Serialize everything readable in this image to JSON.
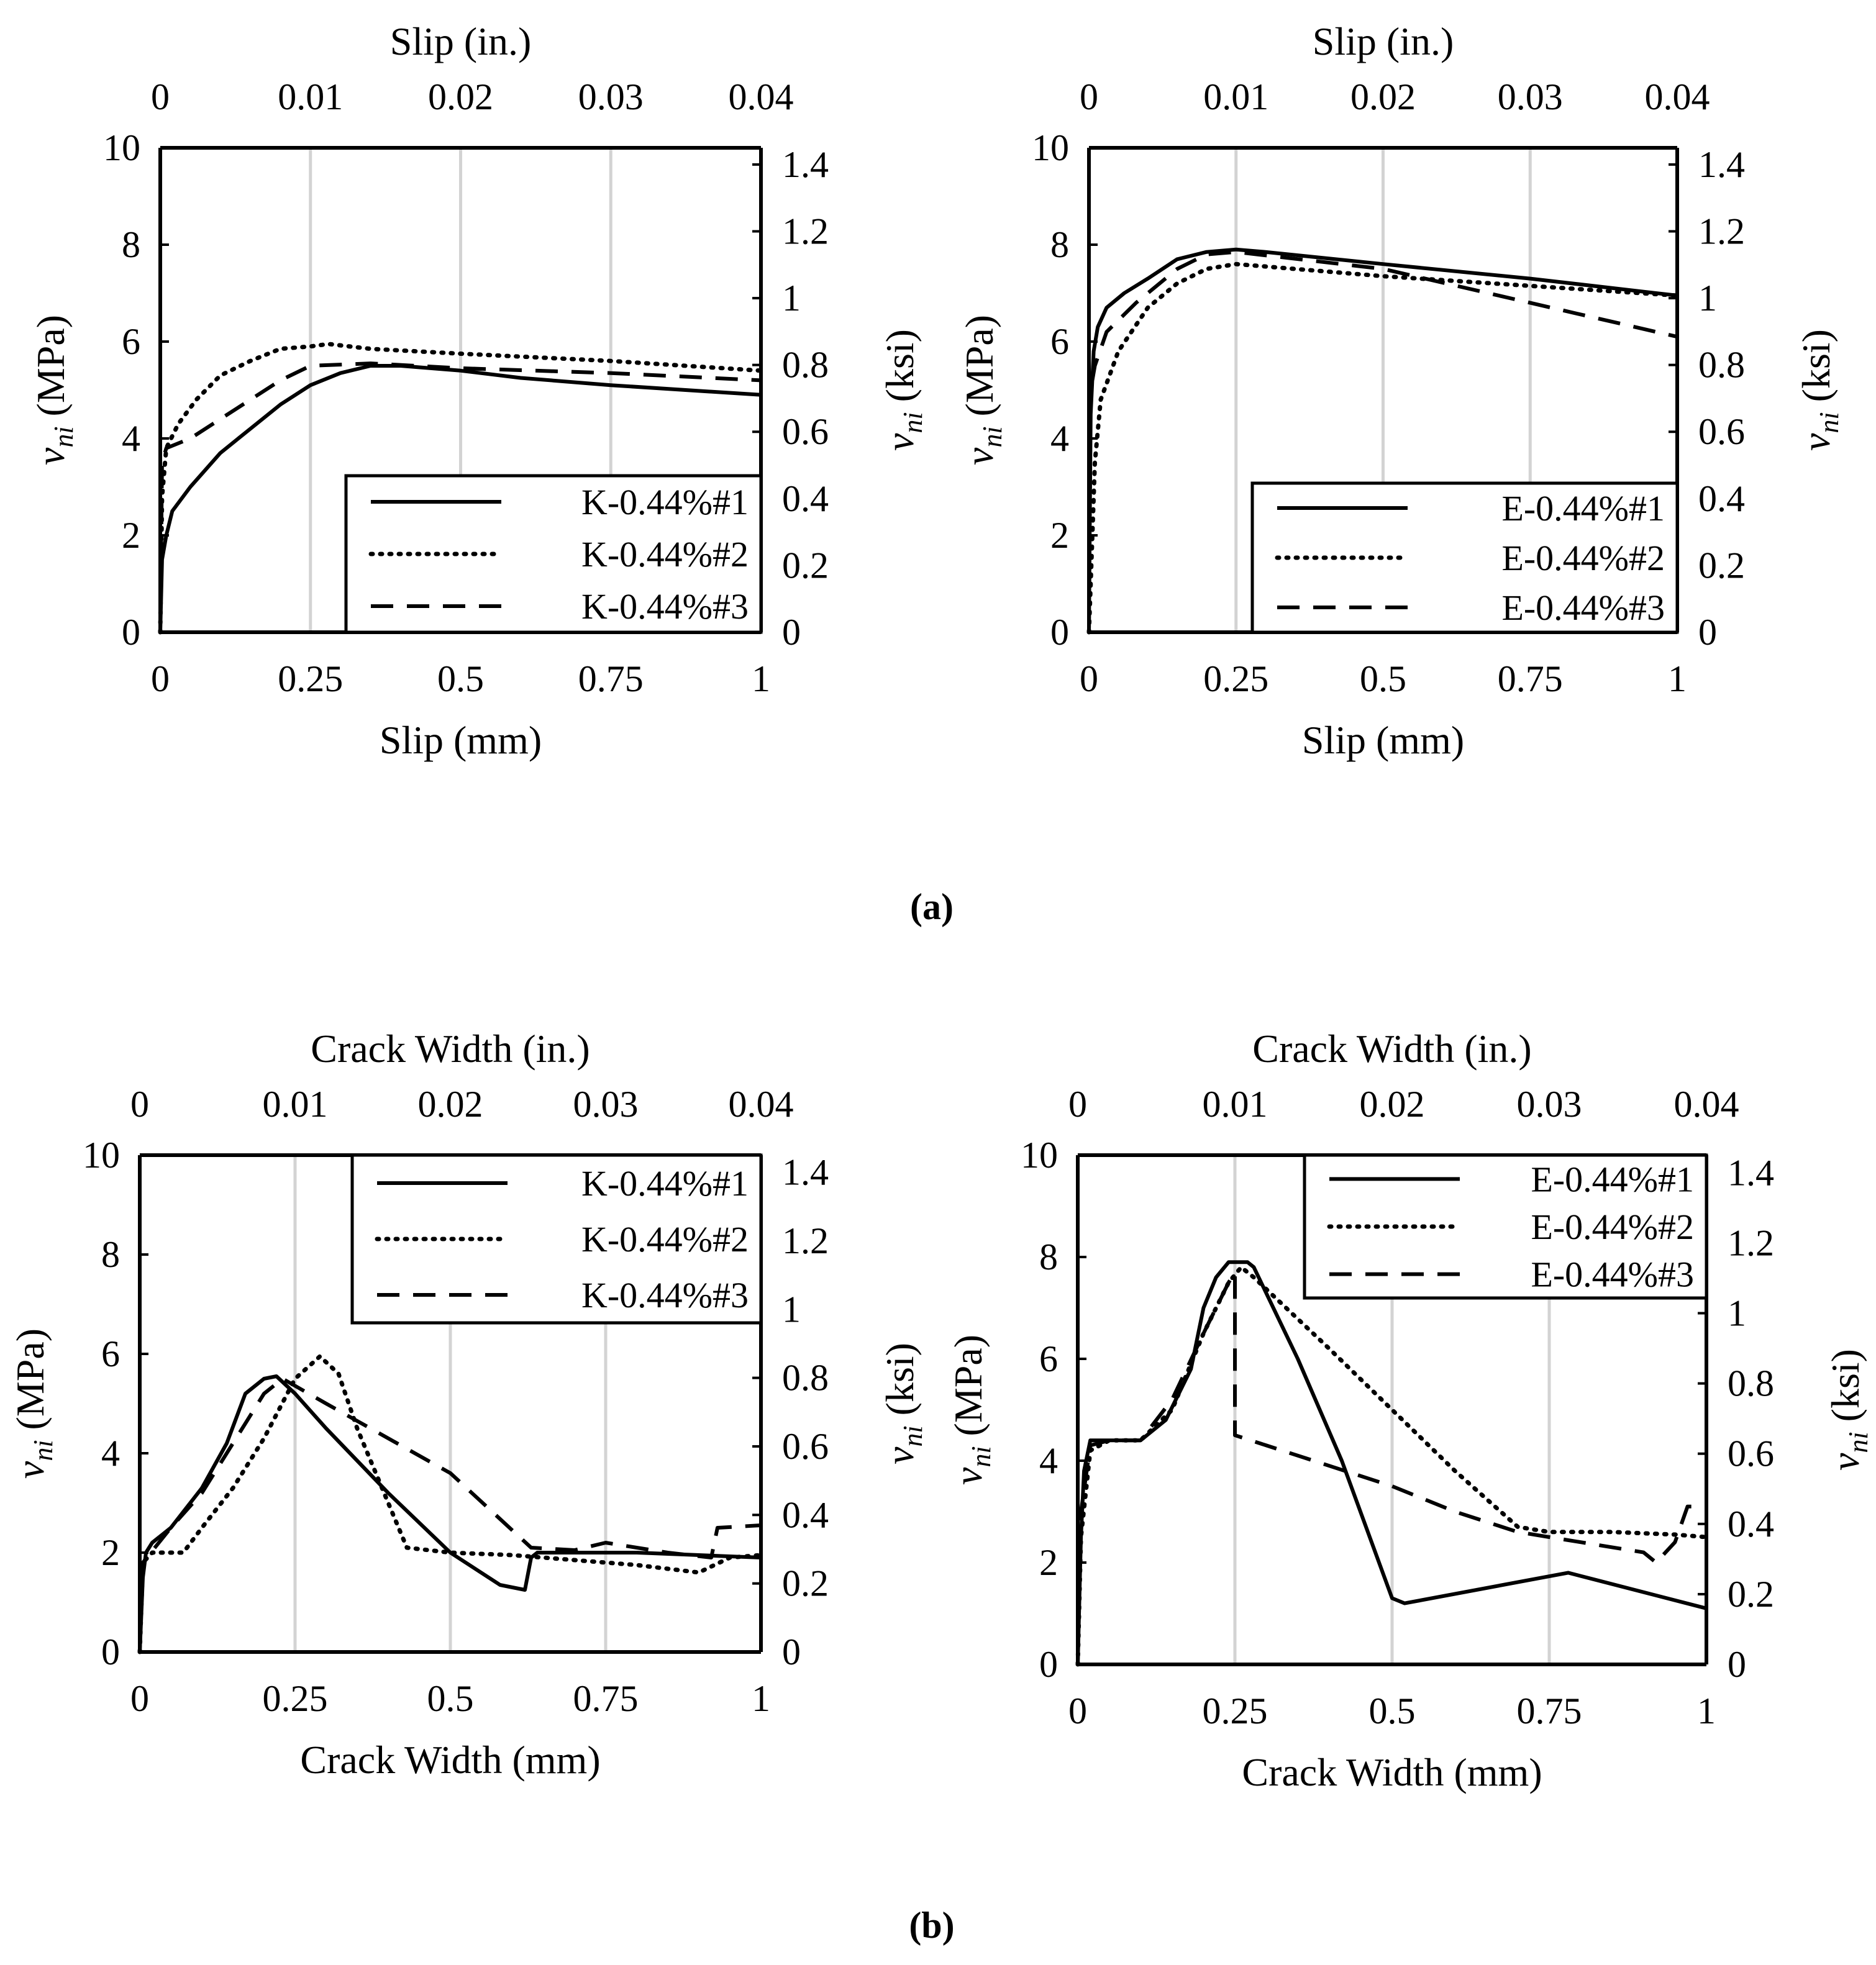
{
  "captions": {
    "a": "(a)",
    "b": "(b)"
  },
  "colors": {
    "line": "#000000",
    "grid": "#d3d3d3",
    "background": "#ffffff"
  },
  "chart_data": [
    {
      "id": "a-left",
      "type": "line",
      "xlabel": "Slip (mm)",
      "x2label": "Slip (in.)",
      "ylabel_main": "v",
      "ylabel_sub": "ni",
      "ylabel_unit": " (MPa)",
      "y2label_main": "v",
      "y2label_sub": "ni",
      "y2label_unit": " (ksi)",
      "xlim": [
        0,
        1
      ],
      "ylim": [
        0,
        10
      ],
      "x2lim": [
        0,
        0.04
      ],
      "y2lim": [
        0,
        1.45
      ],
      "xticks": [
        "0",
        "0.25",
        "0.5",
        "0.75",
        "1"
      ],
      "x2ticks": [
        "0",
        "0.01",
        "0.02",
        "0.03",
        "0.04"
      ],
      "yticks": [
        "0",
        "2",
        "4",
        "6",
        "8",
        "10"
      ],
      "y2ticks": [
        "0",
        "0.2",
        "0.4",
        "0.6",
        "0.8",
        "1",
        "1.2",
        "1.4"
      ],
      "grid": "vertical",
      "legend": "bottom-right",
      "series": [
        {
          "name": "K-0.44%#1",
          "style": "solid",
          "x": [
            0,
            0.003,
            0.01,
            0.02,
            0.05,
            0.1,
            0.15,
            0.2,
            0.25,
            0.3,
            0.35,
            0.4,
            0.5,
            0.6,
            0.75,
            1.0
          ],
          "y": [
            0,
            1.5,
            2.0,
            2.5,
            3.0,
            3.7,
            4.2,
            4.7,
            5.1,
            5.35,
            5.5,
            5.5,
            5.4,
            5.25,
            5.1,
            4.9
          ]
        },
        {
          "name": "K-0.44%#2",
          "style": "dotted",
          "x": [
            0,
            0.003,
            0.01,
            0.03,
            0.06,
            0.1,
            0.15,
            0.2,
            0.25,
            0.28,
            0.35,
            0.5,
            0.75,
            1.0
          ],
          "y": [
            0,
            2.8,
            3.8,
            4.3,
            4.8,
            5.3,
            5.6,
            5.85,
            5.9,
            5.95,
            5.85,
            5.75,
            5.6,
            5.4
          ]
        },
        {
          "name": "K-0.44%#3",
          "style": "dashed",
          "x": [
            0,
            0.003,
            0.01,
            0.05,
            0.1,
            0.15,
            0.2,
            0.25,
            0.35,
            0.5,
            0.75,
            1.0
          ],
          "y": [
            0,
            3.5,
            3.8,
            4.0,
            4.4,
            4.8,
            5.2,
            5.5,
            5.55,
            5.45,
            5.35,
            5.2
          ]
        }
      ]
    },
    {
      "id": "a-right",
      "type": "line",
      "xlabel": "Slip (mm)",
      "x2label": "Slip (in.)",
      "ylabel_main": "v",
      "ylabel_sub": "ni",
      "ylabel_unit": " (MPa)",
      "y2label_main": "v",
      "y2label_sub": "ni",
      "y2label_unit": " (ksi)",
      "xlim": [
        0,
        1
      ],
      "ylim": [
        0,
        10
      ],
      "x2lim": [
        0,
        0.04
      ],
      "y2lim": [
        0,
        1.45
      ],
      "xticks": [
        "0",
        "0.25",
        "0.5",
        "0.75",
        "1"
      ],
      "x2ticks": [
        "0",
        "0.01",
        "0.02",
        "0.03",
        "0.04"
      ],
      "yticks": [
        "0",
        "2",
        "4",
        "6",
        "8",
        "10"
      ],
      "y2ticks": [
        "0",
        "0.2",
        "0.4",
        "0.6",
        "0.8",
        "1",
        "1.2",
        "1.4"
      ],
      "grid": "vertical",
      "legend": "bottom-right",
      "series": [
        {
          "name": "E-0.44%#1",
          "style": "solid",
          "x": [
            0,
            0.003,
            0.008,
            0.015,
            0.03,
            0.06,
            0.1,
            0.15,
            0.2,
            0.25,
            0.3,
            0.5,
            0.75,
            1.0
          ],
          "y": [
            0,
            4.5,
            5.8,
            6.3,
            6.7,
            7.0,
            7.3,
            7.7,
            7.85,
            7.9,
            7.85,
            7.6,
            7.3,
            6.95
          ]
        },
        {
          "name": "E-0.44%#2",
          "style": "dotted",
          "x": [
            0,
            0.003,
            0.01,
            0.02,
            0.05,
            0.1,
            0.15,
            0.2,
            0.25,
            0.5,
            0.75,
            1.0
          ],
          "y": [
            0,
            1.0,
            3.5,
            4.8,
            5.8,
            6.7,
            7.2,
            7.5,
            7.6,
            7.35,
            7.15,
            6.95
          ]
        },
        {
          "name": "E-0.44%#3",
          "style": "dashed",
          "x": [
            0,
            0.003,
            0.01,
            0.03,
            0.08,
            0.15,
            0.2,
            0.25,
            0.5,
            0.75,
            1.0
          ],
          "y": [
            0,
            5.0,
            5.5,
            6.2,
            6.8,
            7.5,
            7.8,
            7.85,
            7.5,
            6.8,
            6.1
          ]
        }
      ]
    },
    {
      "id": "b-left",
      "type": "line",
      "xlabel": "Crack Width (mm)",
      "x2label": "Crack Width (in.)",
      "ylabel_main": "v",
      "ylabel_sub": "ni",
      "ylabel_unit": " (MPa)",
      "y2label_main": "v",
      "y2label_sub": "ni",
      "y2label_unit": " (ksi)",
      "xlim": [
        0,
        1
      ],
      "ylim": [
        0,
        10
      ],
      "x2lim": [
        0,
        0.04
      ],
      "y2lim": [
        0,
        1.45
      ],
      "xticks": [
        "0",
        "0.25",
        "0.5",
        "0.75",
        "1"
      ],
      "x2ticks": [
        "0",
        "0.01",
        "0.02",
        "0.03",
        "0.04"
      ],
      "yticks": [
        "0",
        "2",
        "4",
        "6",
        "8",
        "10"
      ],
      "y2ticks": [
        "0",
        "0.2",
        "0.4",
        "0.6",
        "0.8",
        "1",
        "1.2",
        "1.4"
      ],
      "grid": "vertical",
      "legend": "top-right",
      "series": [
        {
          "name": "K-0.44%#1",
          "style": "solid",
          "x": [
            0,
            0.005,
            0.01,
            0.02,
            0.05,
            0.1,
            0.14,
            0.17,
            0.2,
            0.22,
            0.25,
            0.3,
            0.4,
            0.5,
            0.58,
            0.62,
            0.63,
            0.64,
            0.8,
            1.0
          ],
          "y": [
            0,
            1.5,
            2.0,
            2.2,
            2.5,
            3.3,
            4.2,
            5.2,
            5.5,
            5.55,
            5.2,
            4.5,
            3.2,
            2.0,
            1.35,
            1.25,
            1.9,
            2.0,
            2.0,
            1.9
          ]
        },
        {
          "name": "K-0.44%#2",
          "style": "dotted",
          "x": [
            0,
            0.005,
            0.02,
            0.07,
            0.1,
            0.15,
            0.2,
            0.25,
            0.29,
            0.32,
            0.35,
            0.4,
            0.43,
            0.5,
            0.6,
            0.7,
            0.8,
            0.9,
            0.95,
            1.0
          ],
          "y": [
            0,
            1.8,
            2.0,
            2.0,
            2.5,
            3.3,
            4.3,
            5.5,
            5.95,
            5.6,
            4.5,
            3.0,
            2.1,
            2.0,
            1.95,
            1.85,
            1.75,
            1.6,
            1.9,
            1.95
          ]
        },
        {
          "name": "K-0.44%#3",
          "style": "dashed",
          "x": [
            0,
            0.005,
            0.05,
            0.1,
            0.15,
            0.2,
            0.23,
            0.3,
            0.4,
            0.5,
            0.63,
            0.7,
            0.75,
            0.85,
            0.92,
            0.93,
            1.0
          ],
          "y": [
            0,
            1.8,
            2.5,
            3.2,
            4.2,
            5.2,
            5.5,
            5.0,
            4.3,
            3.6,
            2.1,
            2.05,
            2.2,
            2.0,
            1.9,
            2.5,
            2.55
          ]
        }
      ]
    },
    {
      "id": "b-right",
      "type": "line",
      "xlabel": "Crack Width  (mm)",
      "x2label": "Crack Width  (in.)",
      "ylabel_main": "v",
      "ylabel_sub": "ni",
      "ylabel_unit": " (MPa)",
      "y2label_main": "v",
      "y2label_sub": "ni",
      "y2label_unit": " (ksi)",
      "xlim": [
        0,
        1
      ],
      "ylim": [
        0,
        10
      ],
      "x2lim": [
        0,
        0.04
      ],
      "y2lim": [
        0,
        1.45
      ],
      "xticks": [
        "0",
        "0.25",
        "0.5",
        "0.75",
        "1"
      ],
      "x2ticks": [
        "0",
        "0.01",
        "0.02",
        "0.03",
        "0.04"
      ],
      "yticks": [
        "0",
        "2",
        "4",
        "6",
        "8",
        "10"
      ],
      "y2ticks": [
        "0",
        "0.2",
        "0.4",
        "0.6",
        "0.8",
        "1",
        "1.2",
        "1.4"
      ],
      "grid": "vertical",
      "legend": "top-right",
      "series": [
        {
          "name": "E-0.44%#1",
          "style": "solid",
          "x": [
            0,
            0.005,
            0.01,
            0.02,
            0.03,
            0.08,
            0.1,
            0.14,
            0.18,
            0.2,
            0.22,
            0.24,
            0.25,
            0.27,
            0.28,
            0.35,
            0.42,
            0.5,
            0.52,
            0.78,
            1.0
          ],
          "y": [
            0,
            2.5,
            3.8,
            4.4,
            4.4,
            4.4,
            4.4,
            4.8,
            5.8,
            7.0,
            7.6,
            7.9,
            7.9,
            7.9,
            7.8,
            6.0,
            4.0,
            1.3,
            1.2,
            1.8,
            1.1
          ]
        },
        {
          "name": "E-0.44%#2",
          "style": "dotted",
          "x": [
            0,
            0.005,
            0.02,
            0.05,
            0.1,
            0.15,
            0.2,
            0.24,
            0.26,
            0.28,
            0.4,
            0.5,
            0.6,
            0.7,
            0.75,
            0.85,
            0.95,
            1.0
          ],
          "y": [
            0,
            2.5,
            4.2,
            4.4,
            4.4,
            5.0,
            6.5,
            7.5,
            7.8,
            7.6,
            6.2,
            5.0,
            3.8,
            2.7,
            2.6,
            2.6,
            2.55,
            2.5
          ]
        },
        {
          "name": "E-0.44%#3",
          "style": "dashed",
          "x": [
            0,
            0.005,
            0.02,
            0.05,
            0.1,
            0.15,
            0.2,
            0.24,
            0.25,
            0.25,
            0.3,
            0.4,
            0.5,
            0.6,
            0.7,
            0.8,
            0.9,
            0.92,
            0.95,
            0.97,
            1.0
          ],
          "y": [
            0,
            3.0,
            4.3,
            4.4,
            4.4,
            5.2,
            6.5,
            7.5,
            7.7,
            4.5,
            4.3,
            3.9,
            3.5,
            3.0,
            2.6,
            2.4,
            2.2,
            2.0,
            2.4,
            3.1,
            3.1
          ]
        }
      ]
    }
  ]
}
